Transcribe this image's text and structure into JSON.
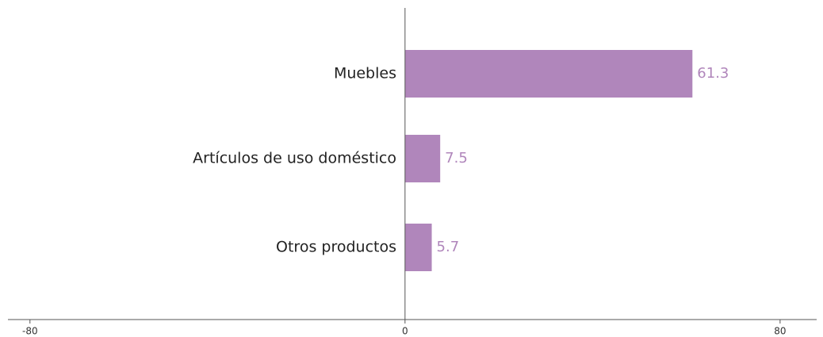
{
  "chart_data": {
    "type": "hbar",
    "categories": [
      "Muebles",
      "Artículos de uso doméstico",
      "Otros productos"
    ],
    "values": [
      61.3,
      7.5,
      5.7
    ],
    "color": "#b086bb",
    "xlim": [
      -84.7,
      87.8
    ],
    "xticks": [
      -80,
      0,
      80
    ]
  }
}
